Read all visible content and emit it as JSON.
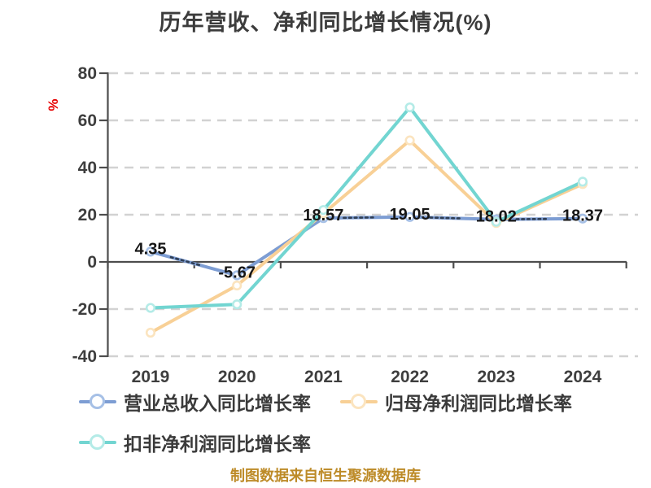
{
  "title": "历年营收、净利同比增长情况(%)",
  "y_axis_unit": "%",
  "footer": "制图数据来自恒生聚源数据库",
  "colors": {
    "series_blue": "#7d9dd3",
    "series_orange": "#f8d096",
    "series_teal": "#72d5d1",
    "grid": "#d2d2d2",
    "axis": "#4d4d4d",
    "tick_label": "#3e3e3e",
    "data_label": "#161616",
    "title_text": "#3c3c3c",
    "legend_text": "#3a3a3a",
    "footer_text": "#bd8b28",
    "unit_label": "#e60000",
    "label_leader_dots": "#2f3e55"
  },
  "chart_data": {
    "type": "line",
    "title": "历年营收、净利同比增长情况(%)",
    "categories": [
      "2019",
      "2020",
      "2021",
      "2022",
      "2023",
      "2024"
    ],
    "series": [
      {
        "name": "营业总收入同比增长率",
        "color": "#7d9dd3",
        "marker_stroke": "#a6c0e6",
        "values": [
          4.35,
          -5.67,
          18.57,
          19.05,
          18.02,
          18.37
        ],
        "value_labels": [
          "4.35",
          "-5.67",
          "18.57",
          "19.05",
          "18.02",
          "18.37"
        ],
        "labeled": true
      },
      {
        "name": "归母净利润同比增长率",
        "color": "#f8d096",
        "marker_stroke": "#fbe4bf",
        "values": [
          -30,
          -10,
          20.5,
          51.5,
          16.5,
          33
        ],
        "labeled": false
      },
      {
        "name": "扣非净利润同比增长率",
        "color": "#72d5d1",
        "marker_stroke": "#b4ebe7",
        "values": [
          -19.5,
          -18,
          22,
          65.5,
          17,
          34
        ],
        "labeled": false
      }
    ],
    "ylabel": "%",
    "xlabel": "",
    "ylim": [
      -40,
      80
    ],
    "yticks": [
      80,
      60,
      40,
      20,
      0,
      -20,
      -40
    ],
    "grid": "horizontal-dashed",
    "legend_position": "bottom"
  }
}
